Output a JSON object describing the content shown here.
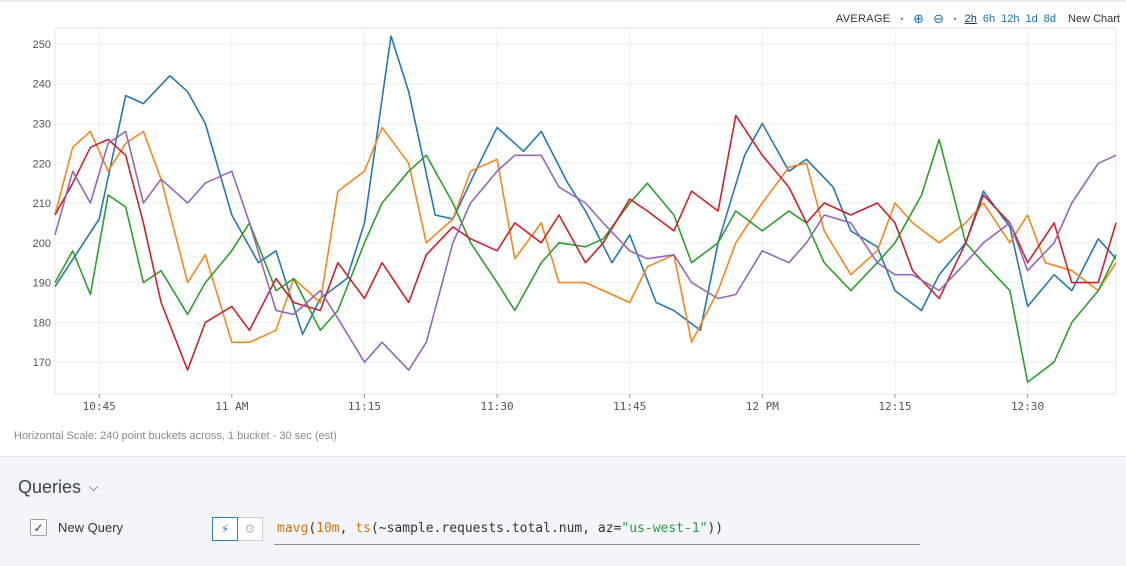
{
  "toolbar": {
    "aggregation": "AVERAGE",
    "ranges": [
      "2h",
      "6h",
      "12h",
      "1d",
      "8d"
    ],
    "active_range": "2h",
    "new_chart": "New Chart"
  },
  "colors": {
    "blue": "#2378b5",
    "orange": "#f5871f",
    "green": "#2ca02c",
    "red": "#d0202e",
    "purple": "#9467bd",
    "grid": "#eeeeee",
    "axis_text": "#555555"
  },
  "chart_data": {
    "type": "line",
    "x_ticks": [
      "10:45",
      "11 AM",
      "11:15",
      "11:30",
      "11:45",
      "12 PM",
      "12:15",
      "12:30"
    ],
    "y_ticks": [
      170,
      180,
      190,
      200,
      210,
      220,
      230,
      240,
      250
    ],
    "xlim": [
      "10:40",
      "12:40"
    ],
    "ylim": [
      162,
      254
    ],
    "grid": true,
    "series": [
      {
        "color": "blue",
        "x": [
          "10:40",
          "10:45",
          "10:48",
          "10:50",
          "10:53",
          "10:55",
          "10:57",
          "11:00",
          "11:03",
          "11:05",
          "11:08",
          "11:10",
          "11:13",
          "11:15",
          "11:18",
          "11:20",
          "11:23",
          "11:25",
          "11:28",
          "11:30",
          "11:33",
          "11:35",
          "11:38",
          "11:40",
          "11:43",
          "11:45",
          "11:48",
          "11:50",
          "11:53",
          "11:55",
          "11:58",
          "12:00",
          "12:03",
          "12:05",
          "12:08",
          "12:10",
          "12:13",
          "12:15",
          "12:18",
          "12:20",
          "12:23",
          "12:25",
          "12:28",
          "12:30",
          "12:33",
          "12:35",
          "12:38",
          "12:40"
        ],
        "values": [
          189,
          206,
          237,
          235,
          242,
          238,
          230,
          207,
          195,
          198,
          177,
          186,
          191,
          205,
          252,
          238,
          207,
          206,
          220,
          229,
          223,
          228,
          215,
          208,
          195,
          202,
          185,
          183,
          178,
          200,
          222,
          230,
          218,
          221,
          214,
          203,
          199,
          188,
          183,
          192,
          200,
          213,
          204,
          184,
          192,
          188,
          201,
          196
        ]
      },
      {
        "color": "orange",
        "x": [
          "10:40",
          "10:42",
          "10:44",
          "10:46",
          "10:48",
          "10:50",
          "10:52",
          "10:55",
          "10:57",
          "11:00",
          "11:02",
          "11:05",
          "11:07",
          "11:10",
          "11:12",
          "11:15",
          "11:17",
          "11:20",
          "11:22",
          "11:25",
          "11:27",
          "11:30",
          "11:32",
          "11:35",
          "11:37",
          "11:40",
          "11:42",
          "11:45",
          "11:47",
          "11:50",
          "11:52",
          "11:55",
          "11:57",
          "12:00",
          "12:03",
          "12:05",
          "12:07",
          "12:10",
          "12:13",
          "12:15",
          "12:17",
          "12:20",
          "12:23",
          "12:25",
          "12:28",
          "12:30",
          "12:32",
          "12:35",
          "12:38",
          "12:40"
        ],
        "values": [
          207,
          224,
          228,
          218,
          225,
          228,
          216,
          190,
          197,
          175,
          175,
          178,
          191,
          185,
          213,
          218,
          229,
          220,
          200,
          206,
          218,
          221,
          196,
          205,
          190,
          190,
          188,
          185,
          194,
          197,
          175,
          188,
          200,
          210,
          219,
          220,
          203,
          192,
          198,
          210,
          205,
          200,
          205,
          210,
          200,
          207,
          195,
          193,
          188,
          195
        ]
      },
      {
        "color": "green",
        "x": [
          "10:40",
          "10:42",
          "10:44",
          "10:46",
          "10:48",
          "10:50",
          "10:52",
          "10:55",
          "10:57",
          "11:00",
          "11:02",
          "11:05",
          "11:07",
          "11:10",
          "11:12",
          "11:15",
          "11:17",
          "11:20",
          "11:22",
          "11:25",
          "11:27",
          "11:30",
          "11:32",
          "11:35",
          "11:37",
          "11:40",
          "11:42",
          "11:45",
          "11:47",
          "11:50",
          "11:52",
          "11:55",
          "11:57",
          "12:00",
          "12:03",
          "12:05",
          "12:07",
          "12:10",
          "12:13",
          "12:15",
          "12:18",
          "12:20",
          "12:23",
          "12:25",
          "12:28",
          "12:30",
          "12:33",
          "12:35",
          "12:38",
          "12:40"
        ],
        "values": [
          190,
          198,
          187,
          212,
          209,
          190,
          193,
          182,
          190,
          198,
          205,
          188,
          191,
          178,
          183,
          200,
          210,
          218,
          222,
          210,
          200,
          190,
          183,
          195,
          200,
          199,
          201,
          210,
          215,
          207,
          195,
          200,
          208,
          203,
          208,
          205,
          195,
          188,
          195,
          200,
          212,
          226,
          200,
          195,
          188,
          165,
          170,
          180,
          188,
          197
        ]
      },
      {
        "color": "red",
        "x": [
          "10:40",
          "10:42",
          "10:44",
          "10:46",
          "10:48",
          "10:50",
          "10:52",
          "10:55",
          "10:57",
          "11:00",
          "11:02",
          "11:05",
          "11:07",
          "11:10",
          "11:12",
          "11:15",
          "11:17",
          "11:20",
          "11:22",
          "11:25",
          "11:27",
          "11:30",
          "11:32",
          "11:35",
          "11:37",
          "11:40",
          "11:42",
          "11:45",
          "11:47",
          "11:50",
          "11:52",
          "11:55",
          "11:57",
          "12:00",
          "12:03",
          "12:05",
          "12:07",
          "12:10",
          "12:13",
          "12:15",
          "12:17",
          "12:20",
          "12:23",
          "12:25",
          "12:28",
          "12:30",
          "12:33",
          "12:35",
          "12:38",
          "12:40"
        ],
        "values": [
          207,
          215,
          224,
          226,
          222,
          205,
          185,
          168,
          180,
          184,
          178,
          191,
          185,
          183,
          195,
          186,
          195,
          185,
          197,
          204,
          201,
          198,
          205,
          200,
          207,
          195,
          200,
          211,
          208,
          203,
          213,
          208,
          232,
          222,
          214,
          205,
          210,
          207,
          210,
          205,
          193,
          186,
          200,
          212,
          205,
          195,
          205,
          190,
          190,
          205
        ]
      },
      {
        "color": "purple",
        "x": [
          "10:40",
          "10:42",
          "10:44",
          "10:46",
          "10:48",
          "10:50",
          "10:52",
          "10:55",
          "10:57",
          "11:00",
          "11:02",
          "11:05",
          "11:07",
          "11:10",
          "11:12",
          "11:15",
          "11:17",
          "11:20",
          "11:22",
          "11:25",
          "11:27",
          "11:30",
          "11:32",
          "11:35",
          "11:37",
          "11:40",
          "11:42",
          "11:45",
          "11:47",
          "11:50",
          "11:52",
          "11:55",
          "11:57",
          "12:00",
          "12:03",
          "12:05",
          "12:07",
          "12:10",
          "12:13",
          "12:15",
          "12:17",
          "12:20",
          "12:23",
          "12:25",
          "12:28",
          "12:30",
          "12:33",
          "12:35",
          "12:38",
          "12:40"
        ],
        "values": [
          202,
          218,
          210,
          225,
          228,
          210,
          216,
          210,
          215,
          218,
          205,
          183,
          182,
          188,
          181,
          170,
          175,
          168,
          175,
          200,
          210,
          218,
          222,
          222,
          214,
          210,
          205,
          198,
          196,
          197,
          190,
          186,
          187,
          198,
          195,
          200,
          207,
          205,
          195,
          192,
          192,
          188,
          195,
          200,
          205,
          193,
          200,
          210,
          220,
          222
        ]
      }
    ]
  },
  "footer": {
    "hscale_text": "Horizontal Scale: 240 point buckets across, 1 bucket - 30 sec (est)"
  },
  "queries": {
    "title": "Queries",
    "items": [
      {
        "name": "New Query",
        "checked": true,
        "expression": {
          "func1": "mavg",
          "p1": "(",
          "num": "10m",
          "p2": ", ",
          "func2": "ts",
          "p3": "(~sample.requests.total.num, az=",
          "str": "\"us-west-1\"",
          "p4": "))"
        }
      }
    ]
  }
}
